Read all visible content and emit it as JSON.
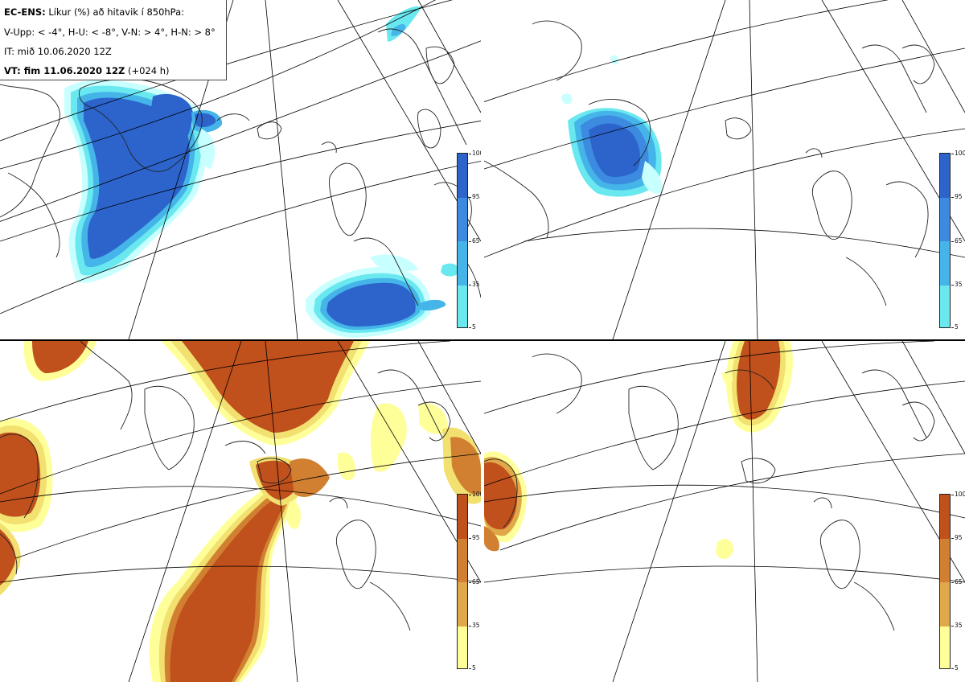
{
  "info": {
    "line1_bold": "EC-ENS:",
    "line1_rest": " Líkur (%) að hitavik í 850hPa:",
    "line2": "V-Upp: < -4°, H-U: < -8°, V-N: > 4°, H-N: > 8°",
    "line3": "IT: mið 10.06.2020 12Z",
    "line4_bold": "VT: fim 11.06.2020 12Z",
    "line4_rest": " (+024 h)"
  },
  "colorbar": {
    "ticks": [
      "100",
      "95",
      "65",
      "35",
      "5"
    ]
  },
  "colors": {
    "cold": [
      "#c8ffff",
      "#6ae8f0",
      "#45b4e8",
      "#3c8be0",
      "#2c64cc"
    ],
    "warm": [
      "#ffff9a",
      "#f2e070",
      "#e0a848",
      "#d08030",
      "#c0501c"
    ],
    "coast": "#222222",
    "grid": "#000000"
  },
  "panels": [
    {
      "id": "v-upp",
      "variable": "V-Upp",
      "scheme": "cold"
    },
    {
      "id": "h-u",
      "variable": "H-U",
      "scheme": "cold"
    },
    {
      "id": "v-n",
      "variable": "V-N",
      "scheme": "warm"
    },
    {
      "id": "h-n",
      "variable": "H-N",
      "scheme": "warm"
    }
  ]
}
